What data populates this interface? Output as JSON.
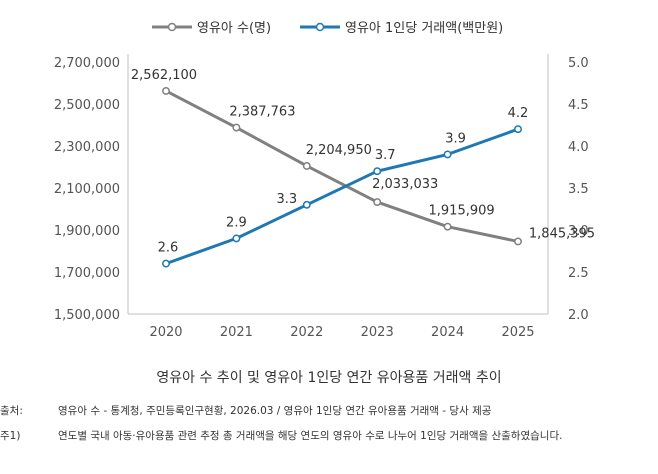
{
  "chart_data": {
    "type": "line",
    "categories": [
      "2020",
      "2021",
      "2022",
      "2023",
      "2024",
      "2025"
    ],
    "series": [
      {
        "name": "영유아 수(명)",
        "axis": "left",
        "color": "#808080",
        "values": [
          2562100,
          2387763,
          2204950,
          2033033,
          1915909,
          1845395
        ],
        "labels": [
          "2,562,100",
          "2,387,763",
          "2,204,950",
          "2,033,033",
          "1,915,909",
          "1,845,395"
        ]
      },
      {
        "name": "영유아 1인당 거래액(백만원)",
        "axis": "right",
        "color": "#1f77b4",
        "values": [
          2.6,
          2.9,
          3.3,
          3.7,
          3.9,
          4.2
        ],
        "labels": [
          "2.6",
          "2.9",
          "3.3",
          "3.7",
          "3.9",
          "4.2"
        ]
      }
    ],
    "y_left": {
      "lim": [
        1500000,
        2700000
      ],
      "ticks": [
        1500000,
        1700000,
        1900000,
        2100000,
        2300000,
        2500000,
        2700000
      ],
      "tick_labels": [
        "1,500,000",
        "1,700,000",
        "1,900,000",
        "2,100,000",
        "2,300,000",
        "2,500,000",
        "2,700,000"
      ]
    },
    "y_right": {
      "lim": [
        2.0,
        5.0
      ],
      "ticks": [
        2.0,
        2.5,
        3.0,
        3.5,
        4.0,
        4.5,
        5.0
      ],
      "tick_labels": [
        "2.0",
        "2.5",
        "3.0",
        "3.5",
        "4.0",
        "4.5",
        "5.0"
      ]
    },
    "grid": false,
    "legend_position": "top-center",
    "title": "영유아 수 추이 및 영유아 1인당 연간 유아용품 거래액 추이"
  },
  "notes": {
    "source_key": "출처:",
    "source_text": "영유아 수 - 통계청, 주민등록인구현황, 2026.03 / 영유아 1인당 연간 유아용품 거래액 - 당사 제공",
    "note_key": "주1)",
    "note_text": "연도별 국내 아동·유아용품 관련 추정 총 거래액을 해당 연도의 영유아 수로 나누어 1인당 거래액을 산출하였습니다."
  }
}
